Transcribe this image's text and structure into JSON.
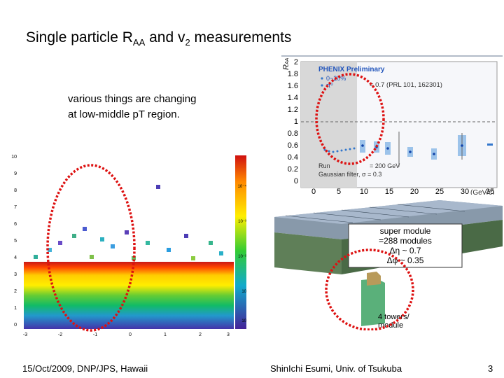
{
  "slide": {
    "title_main": "Single particle R",
    "title_sub1": "AA",
    "title_mid": " and v",
    "title_sub2": "2",
    "title_end": " measurements",
    "note_line1": "various things are changing",
    "note_line2": "at low-middle pT region.",
    "footer_left": "15/Oct/2009, DNP/JPS, Hawaii",
    "footer_mid": "ShinIchi Esumi, Univ. of Tsukuba",
    "page_number": "3"
  },
  "raa_plot": {
    "header": "PHENIX Preliminary",
    "legend_1": "0~20%",
    "legend_2": "π⁰",
    "ref_text": "= 0.7 (PRL 101, 162301)",
    "y_label": "R",
    "y_label_sub": "AA",
    "x_label": "(GeV/c)",
    "run_text": "Run",
    "energy_text": "= 200 GeV",
    "filter_text": "Gaussian filter, σ = 0.3",
    "y_ticks": [
      "2",
      "1.8",
      "1.6",
      "1.4",
      "1.2",
      "1",
      "0.8",
      "0.6",
      "0.4",
      "0.2",
      "0"
    ],
    "x_ticks": [
      "0",
      "5",
      "10",
      "15",
      "20",
      "25",
      "30",
      "35"
    ]
  },
  "heatmap": {
    "y_ticks": [
      "10",
      "9",
      "8",
      "7",
      "6",
      "5",
      "4",
      "3",
      "2",
      "1",
      "0"
    ],
    "x_ticks": [
      "-3",
      "-2",
      "-1",
      "0",
      "1",
      "2",
      "3"
    ],
    "colorbar_ticks": [
      "10⁻⁴",
      "10⁻³",
      "10⁻²",
      "10",
      "10"
    ]
  },
  "detector": {
    "label_1": "super module",
    "label_2": "=288 modules",
    "label_3": "Δη ~ 0.7",
    "label_4": "Δφ ~ 0.35",
    "label_5": "4 towers/",
    "label_6": "module"
  },
  "colors": {
    "highlight": "#dd1111",
    "band": "#cfd9ea",
    "data_blue": "#3377cc"
  }
}
